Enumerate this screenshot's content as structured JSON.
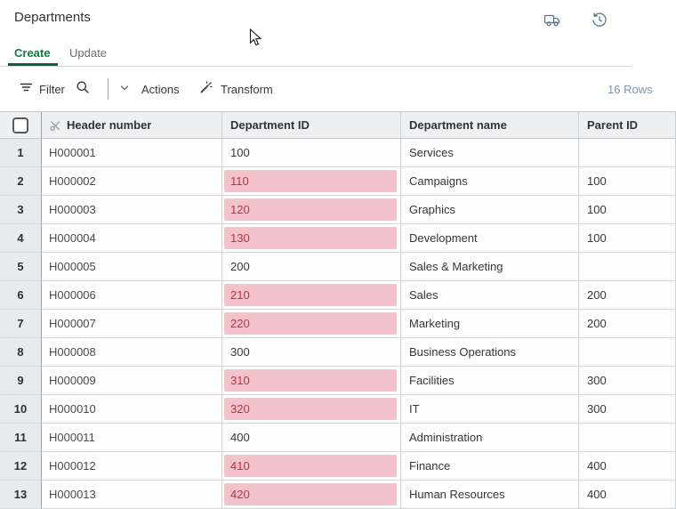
{
  "app": {
    "title": "Departments"
  },
  "header_icons": {
    "van": "migration-van-icon",
    "history": "history-icon"
  },
  "tabs": {
    "create": "Create",
    "update": "Update"
  },
  "toolbar": {
    "filter": "Filter",
    "actions": "Actions",
    "transform": "Transform",
    "row_count": "16 Rows"
  },
  "table": {
    "columns": {
      "header_number": "Header number",
      "department_id": "Department ID",
      "department_name": "Department name",
      "parent_id": "Parent ID"
    },
    "rows": [
      {
        "num": "1",
        "header_number": "H000001",
        "department_id": "100",
        "flagged": false,
        "department_name": "Services",
        "parent_id": ""
      },
      {
        "num": "2",
        "header_number": "H000002",
        "department_id": "110",
        "flagged": true,
        "department_name": "Campaigns",
        "parent_id": "100"
      },
      {
        "num": "3",
        "header_number": "H000003",
        "department_id": "120",
        "flagged": true,
        "department_name": "Graphics",
        "parent_id": "100"
      },
      {
        "num": "4",
        "header_number": "H000004",
        "department_id": "130",
        "flagged": true,
        "department_name": "Development",
        "parent_id": "100"
      },
      {
        "num": "5",
        "header_number": "H000005",
        "department_id": "200",
        "flagged": false,
        "department_name": "Sales & Marketing",
        "parent_id": ""
      },
      {
        "num": "6",
        "header_number": "H000006",
        "department_id": "210",
        "flagged": true,
        "department_name": "Sales",
        "parent_id": "200"
      },
      {
        "num": "7",
        "header_number": "H000007",
        "department_id": "220",
        "flagged": true,
        "department_name": "Marketing",
        "parent_id": "200"
      },
      {
        "num": "8",
        "header_number": "H000008",
        "department_id": "300",
        "flagged": false,
        "department_name": "Business Operations",
        "parent_id": ""
      },
      {
        "num": "9",
        "header_number": "H000009",
        "department_id": "310",
        "flagged": true,
        "department_name": "Facilities",
        "parent_id": "300"
      },
      {
        "num": "10",
        "header_number": "H000010",
        "department_id": "320",
        "flagged": true,
        "department_name": "IT",
        "parent_id": "300"
      },
      {
        "num": "11",
        "header_number": "H000011",
        "department_id": "400",
        "flagged": false,
        "department_name": "Administration",
        "parent_id": ""
      },
      {
        "num": "12",
        "header_number": "H000012",
        "department_id": "410",
        "flagged": true,
        "department_name": "Finance",
        "parent_id": "400"
      },
      {
        "num": "13",
        "header_number": "H000013",
        "department_id": "420",
        "flagged": true,
        "department_name": "Human Resources",
        "parent_id": "400"
      }
    ]
  },
  "colors": {
    "accent_green": "#0b7d42",
    "accent_underline": "#0a6236",
    "flag_bg": "#f3c3cb",
    "flag_text": "#bc2f44",
    "icon_blue_gray": "#5b738b"
  }
}
